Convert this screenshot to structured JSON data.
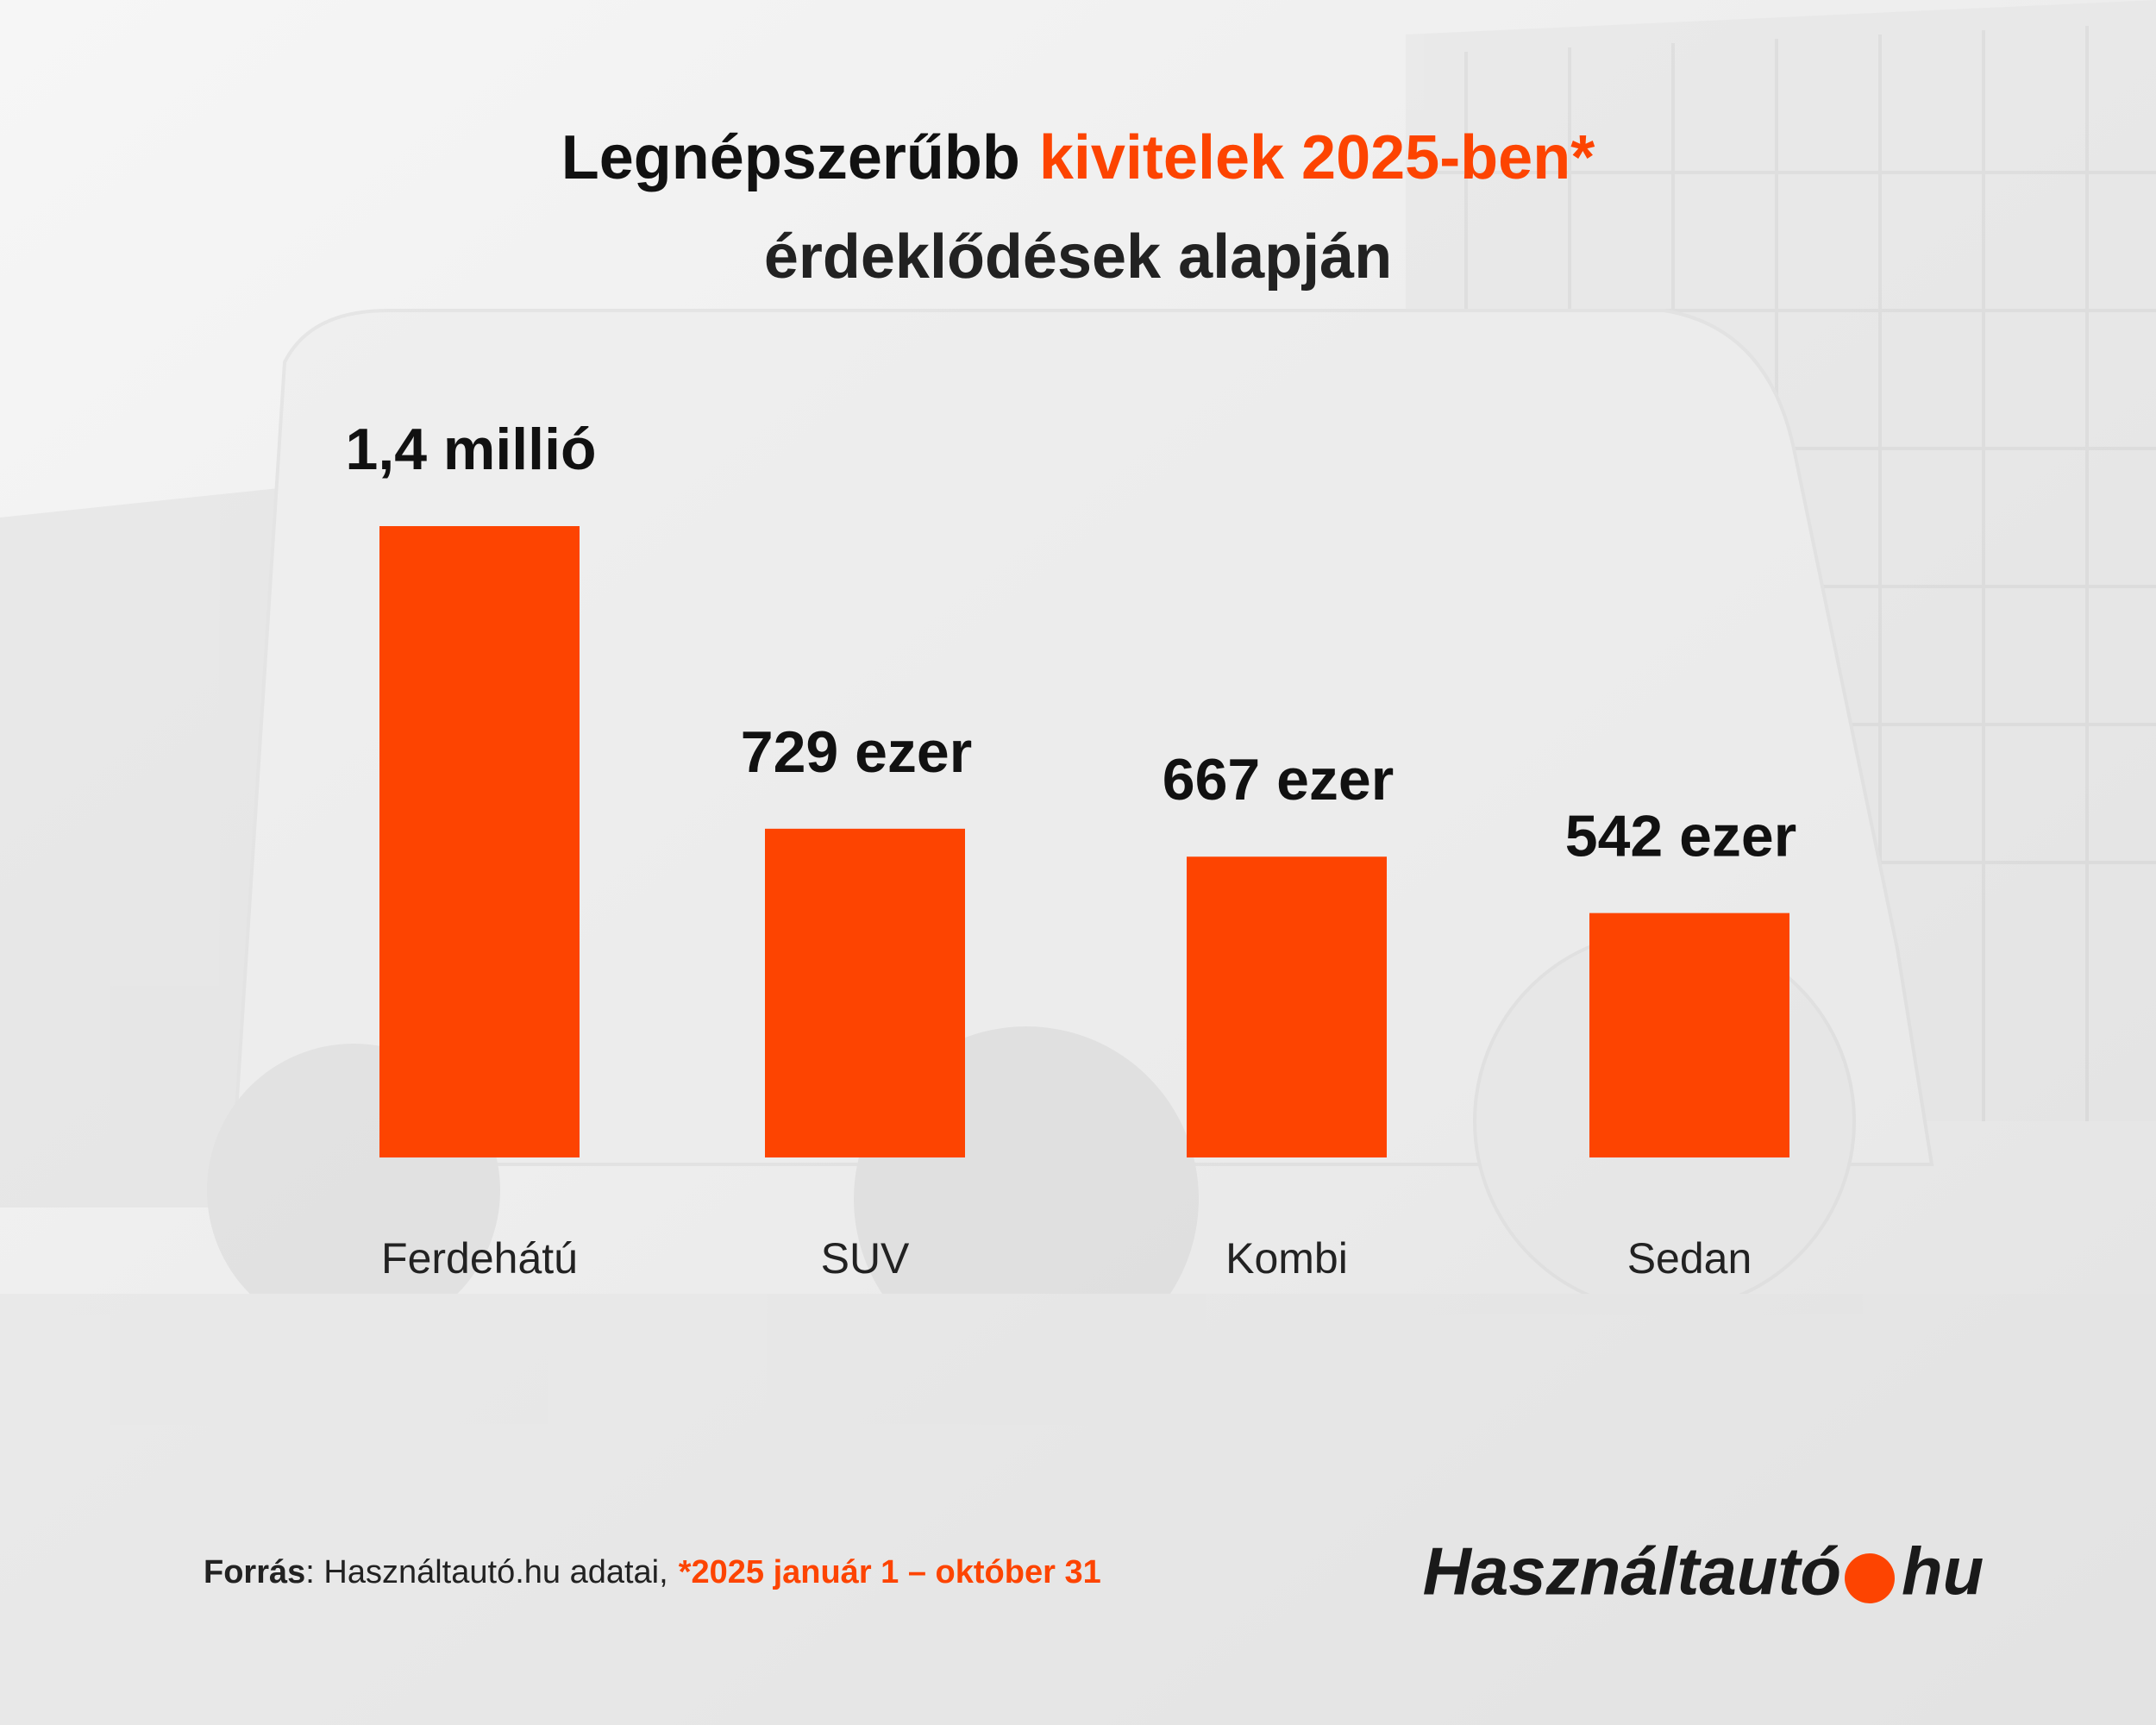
{
  "chart_data": {
    "type": "bar",
    "title": [
      "Legnépszerűbb",
      "kivitelek 2025-ben*"
    ],
    "subtitle": "érdeklődések alapján",
    "categories": [
      "Ferdehátú",
      "SUV",
      "Kombi",
      "Sedan"
    ],
    "values": [
      1400000,
      729000,
      667000,
      542000
    ],
    "value_labels": [
      "1,4 millió",
      "729 ezer",
      "667 ezer",
      "542 ezer"
    ],
    "color": "#fd4401",
    "ylim": [
      0,
      1400000
    ],
    "grid": false,
    "source": [
      "Forrás",
      ": Használtautó.hu adatai,",
      "*2025 január 1 – október 31"
    ],
    "logo": [
      "Használtautó",
      "hu"
    ]
  }
}
